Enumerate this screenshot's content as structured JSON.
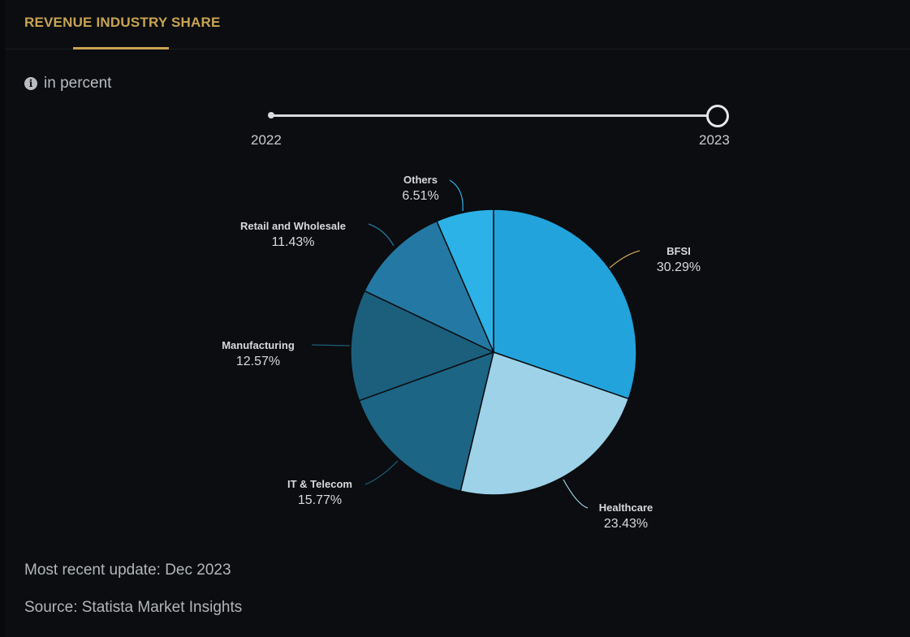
{
  "header": {
    "tab_label": "REVENUE INDUSTRY SHARE"
  },
  "unit": {
    "icon": "info-icon",
    "label": "in percent"
  },
  "slider": {
    "start_label": "2022",
    "end_label": "2023",
    "selected": "2023"
  },
  "chart_data": {
    "type": "pie",
    "slices": [
      {
        "name": "BFSI",
        "value": 30.29,
        "label": "30.29%",
        "color": "#22a3dc"
      },
      {
        "name": "Healthcare",
        "value": 23.43,
        "label": "23.43%",
        "color": "#9ed2e8"
      },
      {
        "name": "IT & Telecom",
        "value": 15.77,
        "label": "15.77%",
        "color": "#1c6584"
      },
      {
        "name": "Manufacturing",
        "value": 12.57,
        "label": "12.57%",
        "color": "#1b5f7d"
      },
      {
        "name": "Retail and Wholesale",
        "value": 11.43,
        "label": "11.43%",
        "color": "#2379a4"
      },
      {
        "name": "Others",
        "value": 6.51,
        "label": "6.51%",
        "color": "#2cb2e6"
      }
    ]
  },
  "footer": {
    "update": "Most recent update: Dec 2023",
    "source": "Source: Statista Market Insights"
  },
  "colors": {
    "accent": "#c8a452",
    "background": "#0b0d10",
    "text": "#c9cbce"
  }
}
